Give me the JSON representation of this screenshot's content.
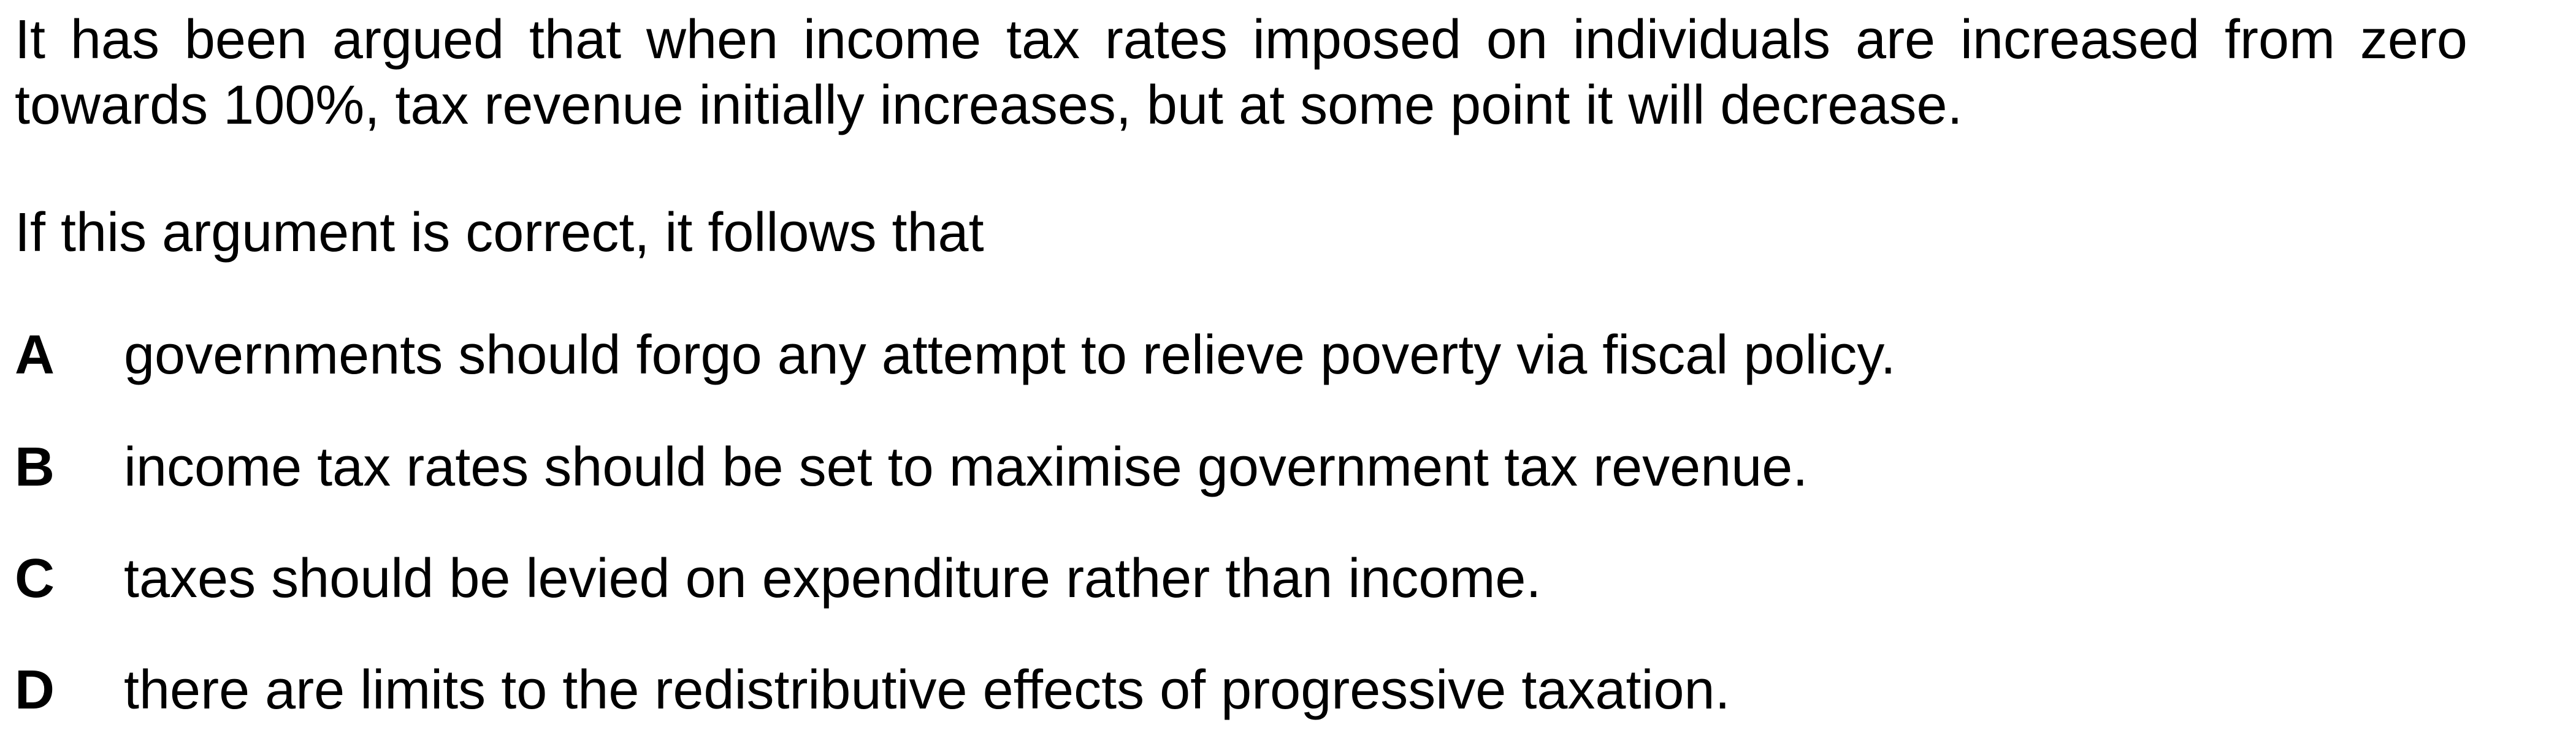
{
  "question": {
    "stem_line_1": "It has been argued that when income tax rates imposed on individuals are increased from zero",
    "stem_line_2": "towards 100%, tax revenue initially increases, but at some point it will decrease.",
    "lead_in": "If this argument is correct, it follows that",
    "options": [
      {
        "letter": "A",
        "text": "governments should forgo any attempt to relieve poverty via fiscal policy."
      },
      {
        "letter": "B",
        "text": "income tax rates should be set to maximise government tax revenue."
      },
      {
        "letter": "C",
        "text": "taxes should be levied on expenditure rather than income."
      },
      {
        "letter": "D",
        "text": "there are limits to the redistributive effects of progressive taxation."
      }
    ]
  }
}
